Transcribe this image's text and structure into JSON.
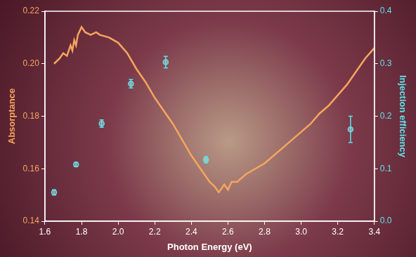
{
  "chart_data": {
    "type": "line",
    "xlabel": "Photon Energy (eV)",
    "ylabel": "Absorptance",
    "y2label": "Injection efficiency",
    "xlim": [
      1.6,
      3.4
    ],
    "xticks": [
      1.6,
      1.8,
      {
        "value": 2.0,
        "label": "2.0"
      },
      2.2,
      2.4,
      2.6,
      2.8,
      {
        "value": 3.0,
        "label": "3.0"
      },
      3.2,
      3.4
    ],
    "ylim": [
      0.14,
      0.22
    ],
    "yticks": [
      0.14,
      0.16,
      0.18,
      {
        "value": 0.2,
        "label": "0.20"
      },
      0.22
    ],
    "y2lim": [
      0,
      0.4
    ],
    "y2ticks": [
      {
        "value": 0,
        "label": "0.0"
      },
      0.1,
      0.2,
      0.3,
      0.4
    ],
    "grid": false,
    "series": [
      {
        "type": "line",
        "color": "#f6a55e",
        "marker": "none",
        "line_style": "solid",
        "x": [
          1.65,
          1.68,
          1.7,
          1.72,
          1.74,
          1.75,
          1.76,
          1.77,
          1.78,
          1.8,
          1.82,
          1.85,
          1.88,
          1.9,
          1.95,
          2.0,
          2.05,
          2.1,
          2.15,
          2.2,
          2.25,
          2.3,
          2.35,
          2.4,
          2.45,
          2.5,
          2.53,
          2.55,
          2.58,
          2.6,
          2.62,
          2.65,
          2.7,
          2.75,
          2.8,
          2.85,
          2.9,
          2.95,
          3.0,
          3.05,
          3.1,
          3.15,
          3.2,
          3.25,
          3.3,
          3.35,
          3.4
        ],
        "values": [
          0.2,
          0.202,
          0.204,
          0.203,
          0.207,
          0.205,
          0.209,
          0.207,
          0.211,
          0.214,
          0.212,
          0.211,
          0.212,
          0.211,
          0.21,
          0.208,
          0.204,
          0.198,
          0.193,
          0.187,
          0.182,
          0.177,
          0.171,
          0.165,
          0.16,
          0.155,
          0.153,
          0.151,
          0.154,
          0.152,
          0.155,
          0.155,
          0.158,
          0.16,
          0.162,
          0.165,
          0.168,
          0.171,
          0.174,
          0.177,
          0.181,
          0.184,
          0.188,
          0.192,
          0.197,
          0.202,
          0.206
        ]
      },
      {
        "type": "scatter",
        "axis": "y2",
        "color": "#5fe1ea",
        "marker": "circle",
        "x": [
          1.65,
          1.77,
          1.91,
          2.07,
          2.26,
          2.48,
          3.27
        ],
        "values": [
          0.055,
          0.108,
          0.186,
          0.262,
          0.303,
          0.117,
          0.175
        ],
        "error": [
          0.005,
          0.004,
          0.007,
          0.008,
          0.011,
          0.006,
          0.025
        ]
      }
    ]
  }
}
